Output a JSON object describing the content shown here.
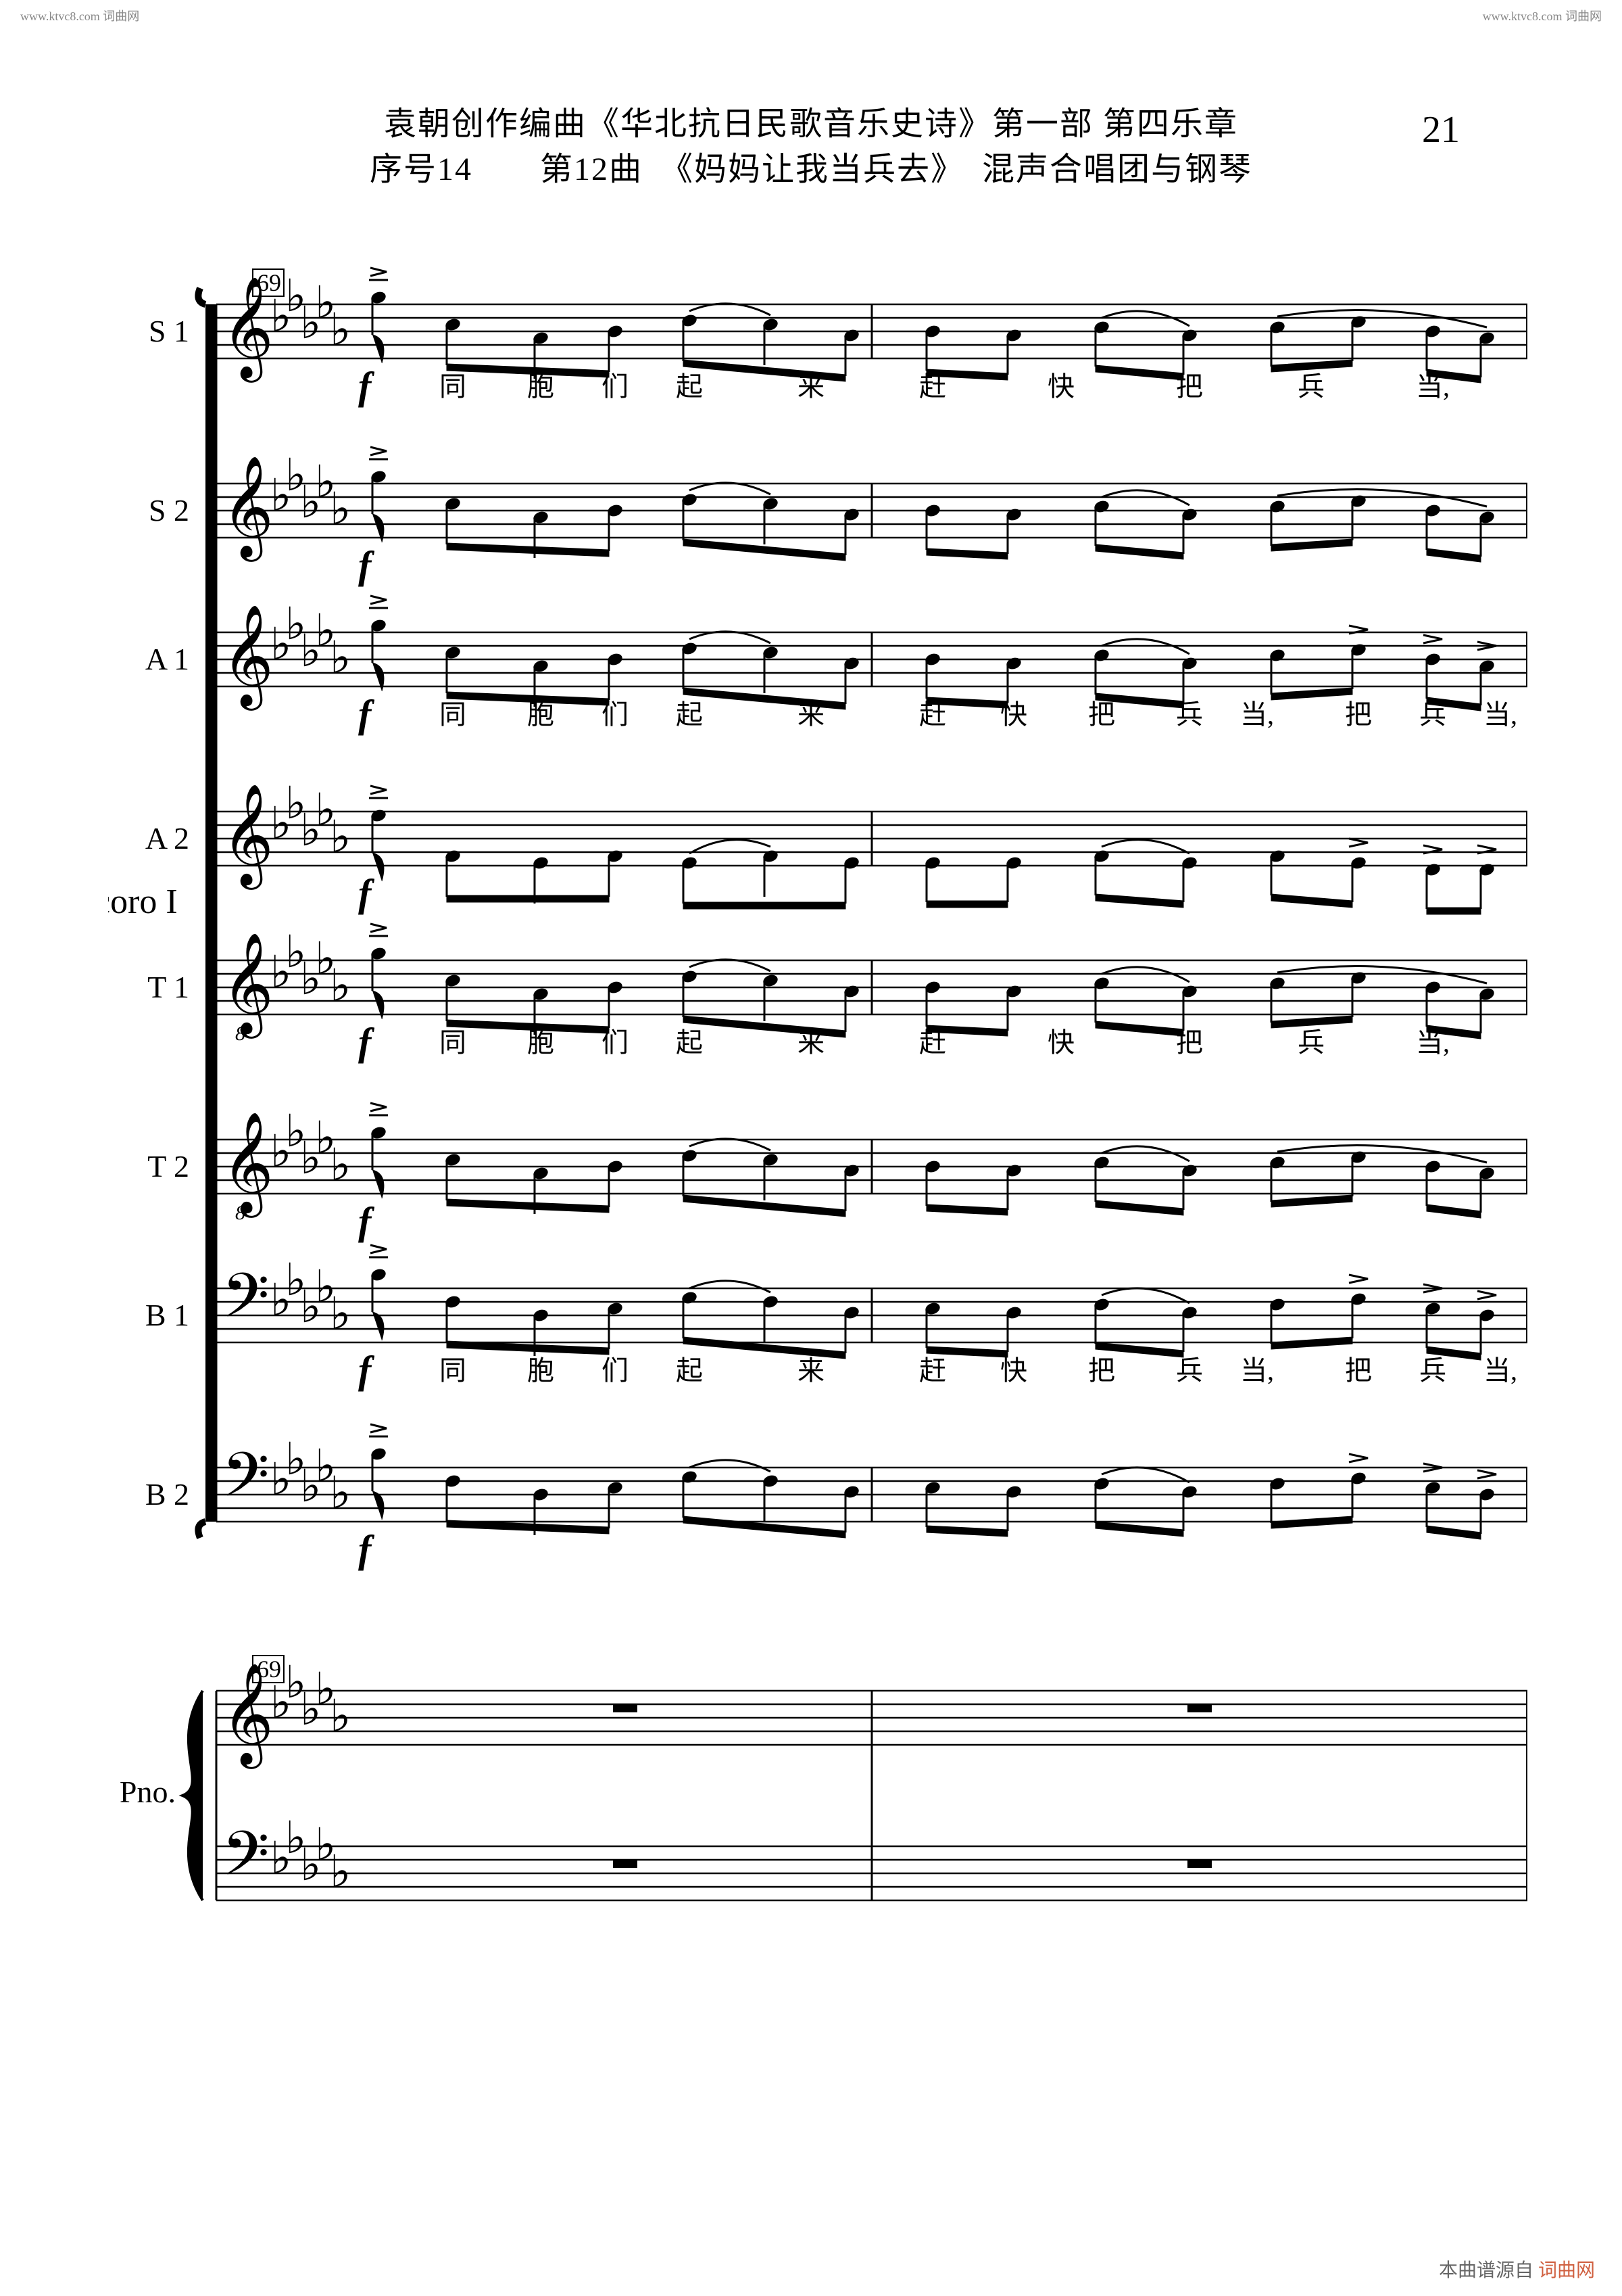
{
  "watermarks": {
    "top_left": "www.ktvc8.com 词曲网",
    "top_right": "www.ktvc8.com 词曲网",
    "bottom_right_prefix": "本曲谱源自",
    "bottom_right_red": "词曲网"
  },
  "header": {
    "title_line1": "袁朝创作编曲《华北抗日民歌音乐史诗》第一部 第四乐章",
    "title_line2": "序号14　　第12曲　《妈妈让我当兵去》　混声合唱团与钢琴",
    "page_number": "21"
  },
  "score": {
    "measure_number": "69",
    "group_label": "coro I",
    "key_signature_flats": 5,
    "parts": [
      {
        "label": "S 1",
        "clef": "treble",
        "dynamic": "f",
        "has_lyrics": true
      },
      {
        "label": "S 2",
        "clef": "treble",
        "dynamic": "f",
        "has_lyrics": false
      },
      {
        "label": "A 1",
        "clef": "treble",
        "dynamic": "f",
        "has_lyrics": true
      },
      {
        "label": "A 2",
        "clef": "treble",
        "dynamic": "f",
        "has_lyrics": false
      },
      {
        "label": "T 1",
        "clef": "treble8",
        "dynamic": "f",
        "has_lyrics": true
      },
      {
        "label": "T 2",
        "clef": "treble8",
        "dynamic": "f",
        "has_lyrics": false
      },
      {
        "label": "B 1",
        "clef": "bass",
        "dynamic": "f",
        "has_lyrics": true
      },
      {
        "label": "B 2",
        "clef": "bass",
        "dynamic": "f",
        "has_lyrics": false
      }
    ],
    "piano": {
      "label": "Pno.",
      "measure_number": "69",
      "staves": [
        {
          "clef": "treble"
        },
        {
          "clef": "bass"
        }
      ]
    },
    "lyrics": {
      "line_s_t": [
        "同",
        "胞",
        "们",
        "起",
        "来",
        "赶",
        "快",
        "把",
        "兵",
        "当,"
      ],
      "line_a_b": [
        "同",
        "胞",
        "们",
        "起",
        "来",
        "赶",
        "快",
        "把",
        "兵",
        "当,",
        "把",
        "兵",
        "当,"
      ]
    },
    "staff_spacing": 250,
    "staff_height": 80,
    "pair_gap": 60,
    "lyric_gap": 75,
    "colors": {
      "background": "#ffffff",
      "ink": "#000000"
    },
    "barlines_x": [
      0,
      970,
      1940
    ],
    "note_positions_m1": [
      350,
      480,
      590,
      700,
      820,
      940
    ],
    "note_positions_m2": [
      1060,
      1180,
      1310,
      1440,
      1570,
      1690,
      1800,
      1880
    ],
    "lyric_x_st": [
      350,
      480,
      590,
      700,
      880,
      1060,
      1250,
      1440,
      1620,
      1800
    ],
    "lyric_x_ab": [
      350,
      480,
      590,
      700,
      880,
      1060,
      1180,
      1310,
      1440,
      1540,
      1690,
      1800,
      1900
    ]
  }
}
